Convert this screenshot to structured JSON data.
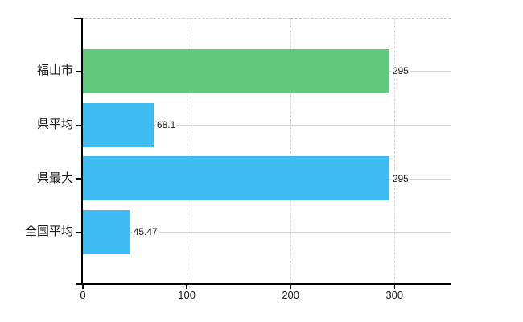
{
  "chart_data": {
    "type": "bar",
    "orientation": "horizontal",
    "title": "",
    "categories": [
      "福山市",
      "県平均",
      "県最大",
      "全国平均"
    ],
    "values": [
      295,
      68.1,
      295,
      45.47
    ],
    "value_labels": [
      "295",
      "68.1",
      "295",
      "45.47"
    ],
    "bar_colors": [
      "#62C87E",
      "#3EBBF0",
      "#3EBBF0",
      "#3EBBF0"
    ],
    "x_ticks": [
      0,
      100,
      200,
      300
    ],
    "x_tick_labels": [
      "0",
      "100",
      "200",
      "300"
    ],
    "xlim": [
      0,
      354
    ],
    "xlabel": "",
    "ylabel": "",
    "legend": "none",
    "grid": {
      "vertical": "dashed",
      "horizontal_category_lines": "solid",
      "top_border": "dashed"
    }
  },
  "colors": {
    "bar_green": "#62C87E",
    "bar_blue": "#3EBBF0",
    "axis": "#000000",
    "gridline": "#D4D4D4",
    "text": "#1A1A1A",
    "background": "#FFFFFF"
  }
}
